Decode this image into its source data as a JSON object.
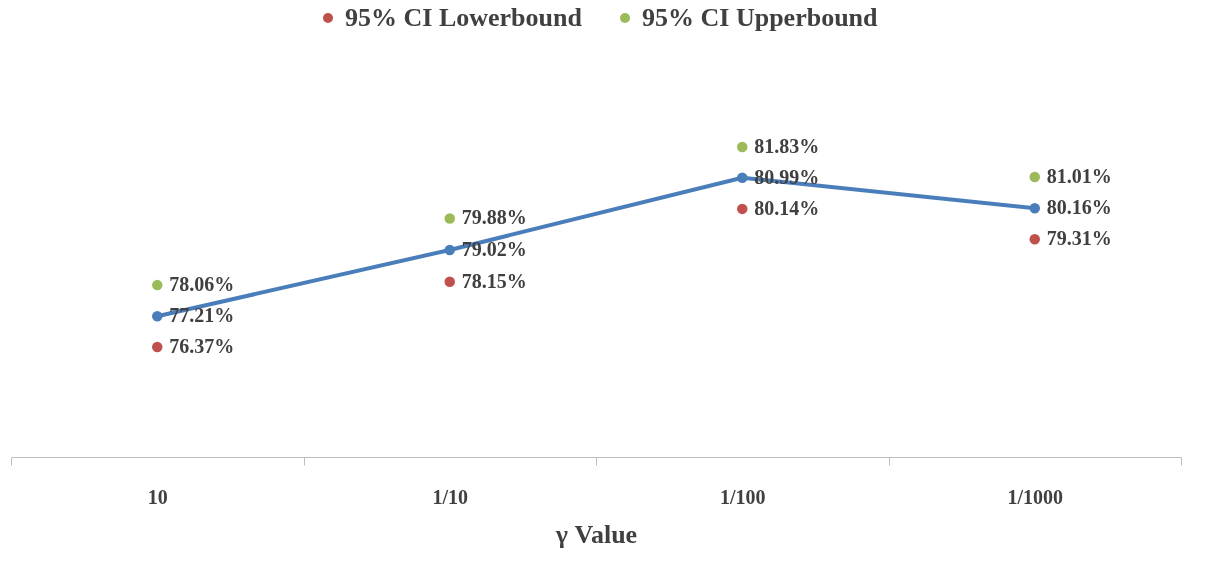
{
  "chart_data": {
    "type": "line",
    "xlabel": "γ Value",
    "categories": [
      "10",
      "1/10",
      "1/100",
      "1/1000"
    ],
    "tick_labels": "x",
    "grid": false,
    "legend": "top",
    "marker": "circle",
    "line_style": "solid",
    "series": [
      {
        "color": "#4a7ebb",
        "values": [
          77.21,
          79.02,
          80.99,
          80.16
        ],
        "value_labels": [
          "77.21%",
          "79.02%",
          "80.99%",
          "80.16%"
        ]
      },
      {
        "name": "95% CI Lowerbound",
        "type": "scatter",
        "color": "#c0504d",
        "values": [
          76.37,
          78.15,
          80.14,
          79.31
        ],
        "value_labels": [
          "76.37%",
          "78.15%",
          "80.14%",
          "79.31%"
        ]
      },
      {
        "name": "95% CI Upperbound",
        "type": "scatter",
        "color": "#9bbb59",
        "values": [
          78.06,
          79.88,
          81.83,
          81.01
        ],
        "value_labels": [
          "78.06%",
          "79.88%",
          "81.83%",
          "81.01%"
        ]
      }
    ]
  }
}
